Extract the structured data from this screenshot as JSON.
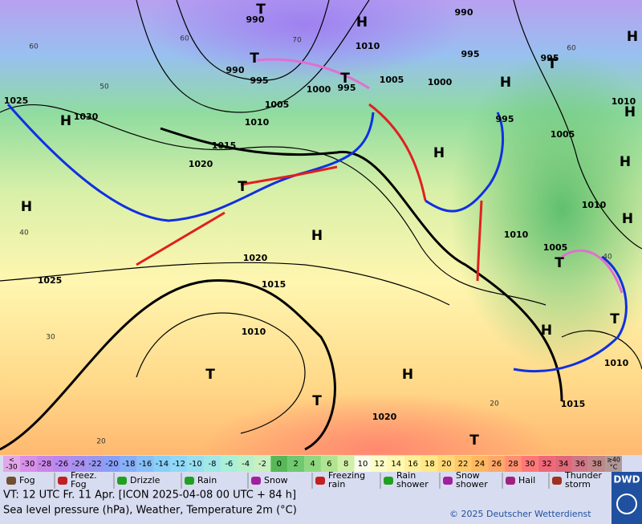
{
  "map": {
    "isobar_labels": [
      "990",
      "990",
      "995",
      "995",
      "1010",
      "990",
      "995",
      "1005",
      "1000",
      "995",
      "1000",
      "1005",
      "1010",
      "995",
      "1005",
      "1010",
      "1025",
      "1030",
      "1015",
      "1020",
      "1010",
      "1010",
      "1005",
      "1020",
      "1025",
      "1015",
      "1010",
      "1010",
      "1015",
      "1020"
    ],
    "latitude_labels": [
      "60",
      "50",
      "40",
      "30",
      "20",
      "60",
      "70",
      "60",
      "40",
      "20"
    ],
    "pressure_centers": [
      "H",
      "T",
      "H",
      "H",
      "H",
      "H",
      "H",
      "H",
      "H",
      "H",
      "H",
      "H",
      "H",
      "T",
      "T",
      "T",
      "T",
      "T",
      "T",
      "T",
      "T",
      "T"
    ]
  },
  "color_scale": {
    "below": {
      "symbol": "<",
      "value": "-30",
      "color": "#e0a8e8"
    },
    "cells": [
      {
        "label": "-30",
        "color": "#d890e8"
      },
      {
        "label": "-28",
        "color": "#c888e8"
      },
      {
        "label": "-26",
        "color": "#b888f0"
      },
      {
        "label": "-24",
        "color": "#a890f0"
      },
      {
        "label": "-22",
        "color": "#9898f0"
      },
      {
        "label": "-20",
        "color": "#88a0f8"
      },
      {
        "label": "-18",
        "color": "#88b0f8"
      },
      {
        "label": "-16",
        "color": "#88c0f8"
      },
      {
        "label": "-14",
        "color": "#88d0f8"
      },
      {
        "label": "-12",
        "color": "#90d8f8"
      },
      {
        "label": "-10",
        "color": "#98e0f0"
      },
      {
        "label": "-8",
        "color": "#a0e8e8"
      },
      {
        "label": "-6",
        "color": "#a8f0d8"
      },
      {
        "label": "-4",
        "color": "#b8f0c8"
      },
      {
        "label": "-2",
        "color": "#c8f0c0"
      },
      {
        "label": "0",
        "color": "#58b858"
      },
      {
        "label": "2",
        "color": "#70c870"
      },
      {
        "label": "4",
        "color": "#90d880"
      },
      {
        "label": "6",
        "color": "#b0e490"
      },
      {
        "label": "8",
        "color": "#d0f0a8"
      },
      {
        "label": "10",
        "color": "#f8fce8"
      },
      {
        "label": "12",
        "color": "#fcfcc8"
      },
      {
        "label": "14",
        "color": "#fff8b0"
      },
      {
        "label": "16",
        "color": "#fff098"
      },
      {
        "label": "18",
        "color": "#ffe888"
      },
      {
        "label": "20",
        "color": "#ffd878"
      },
      {
        "label": "22",
        "color": "#ffc868"
      },
      {
        "label": "24",
        "color": "#ffb860"
      },
      {
        "label": "26",
        "color": "#ffa868"
      },
      {
        "label": "28",
        "color": "#ff9070"
      },
      {
        "label": "30",
        "color": "#ff7878"
      },
      {
        "label": "32",
        "color": "#f06878"
      },
      {
        "label": "34",
        "color": "#e06878"
      },
      {
        "label": "36",
        "color": "#d07888"
      },
      {
        "label": "38",
        "color": "#c08888"
      }
    ],
    "above": {
      "value": "≥40",
      "unit": "°C",
      "color": "#b09898"
    }
  },
  "weather_legend": [
    {
      "lines": [
        "Fog"
      ]
    },
    {
      "lines": [
        "Freez.",
        "Fog"
      ]
    },
    {
      "lines": [
        "Drizzle"
      ]
    },
    {
      "lines": [
        "Rain"
      ]
    },
    {
      "lines": [
        "Snow"
      ]
    },
    {
      "lines": [
        "Freezing",
        "rain"
      ]
    },
    {
      "lines": [
        "Rain",
        "shower"
      ]
    },
    {
      "lines": [
        "Snow",
        "shower"
      ]
    },
    {
      "lines": [
        "Hail"
      ]
    },
    {
      "lines": [
        "Thunder",
        "storm"
      ]
    }
  ],
  "footer": {
    "valid_time": "VT: 12 UTC Fr.  11 Apr. [ICON 2025-04-08  00 UTC + 84 h]",
    "description": "Sea level pressure (hPa), Weather, Temperature 2m (°C)",
    "copyright": "© 2025 Deutscher Wetterdienst"
  },
  "logo": "DWD"
}
